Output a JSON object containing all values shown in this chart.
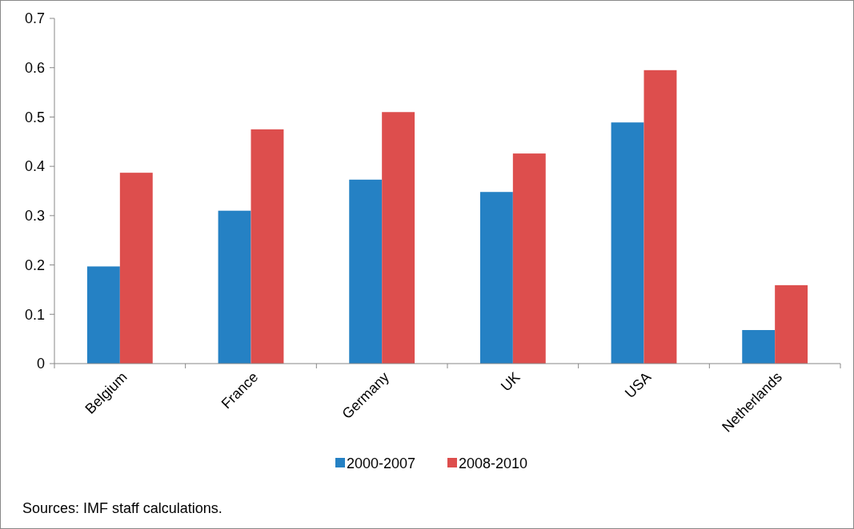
{
  "chart_data": {
    "type": "bar",
    "categories": [
      "Belgium",
      "France",
      "Germany",
      "UK",
      "USA",
      "Netherlands"
    ],
    "series": [
      {
        "name": "2000-2007",
        "color": "#2581c4",
        "values": [
          0.197,
          0.31,
          0.373,
          0.348,
          0.489,
          0.068
        ]
      },
      {
        "name": "2008-2010",
        "color": "#dd4e4d",
        "values": [
          0.387,
          0.475,
          0.51,
          0.426,
          0.595,
          0.159
        ]
      }
    ],
    "ylim": [
      0,
      0.7
    ],
    "yticks": [
      0,
      0.1,
      0.2,
      0.3,
      0.4,
      0.5,
      0.6,
      0.7
    ],
    "grid": false,
    "legend": "bottom",
    "annotations": [
      "Sources: IMF staff calculations."
    ]
  }
}
